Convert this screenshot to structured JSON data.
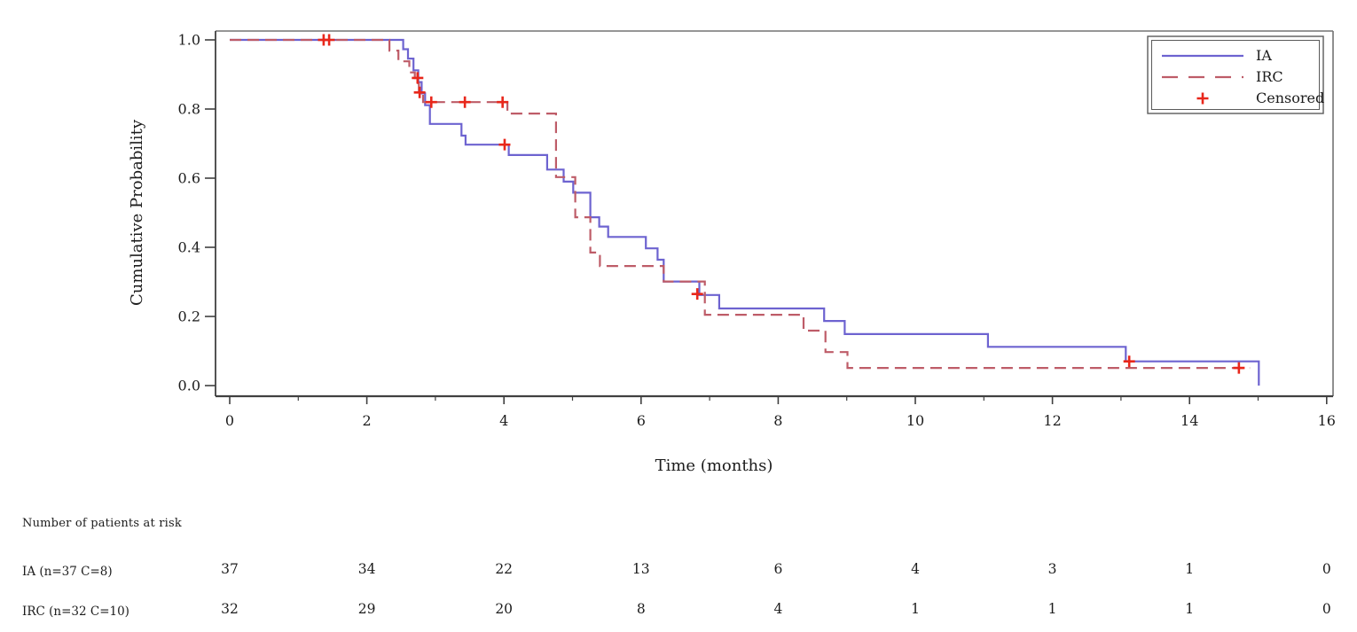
{
  "chart_data": {
    "type": "line",
    "subtype": "kaplan-meier-step",
    "title": "",
    "xlabel": "Time (months)",
    "ylabel": "Cumulative Probability",
    "xlim": [
      0,
      16
    ],
    "ylim": [
      0.0,
      1.0
    ],
    "x_ticks": [
      0,
      2,
      4,
      6,
      8,
      10,
      12,
      14,
      16
    ],
    "x_minor_ticks": [
      1,
      3,
      5,
      7,
      9,
      11,
      13,
      15
    ],
    "y_ticks": [
      0.0,
      0.2,
      0.4,
      0.6,
      0.8,
      1.0
    ],
    "grid": "off",
    "frame": "box",
    "colors": {
      "ia_line": "#6D63D0",
      "irc_line": "#BE5C68",
      "censor_mark": "#E8271B",
      "axis_dark": "#404040",
      "frame_gray": "#737373"
    },
    "series": [
      {
        "name": "IA",
        "style": "solid",
        "color": "#6D63D0",
        "points": [
          [
            0,
            1.0
          ],
          [
            2.53,
            0.973
          ],
          [
            2.6,
            0.946
          ],
          [
            2.68,
            0.912
          ],
          [
            2.75,
            0.878
          ],
          [
            2.8,
            0.845
          ],
          [
            2.85,
            0.811
          ],
          [
            2.92,
            0.757
          ],
          [
            3.38,
            0.723
          ],
          [
            3.44,
            0.697
          ],
          [
            4.07,
            0.667
          ],
          [
            4.63,
            0.625
          ],
          [
            4.87,
            0.59
          ],
          [
            5.01,
            0.558
          ],
          [
            5.26,
            0.487
          ],
          [
            5.39,
            0.46
          ],
          [
            5.52,
            0.43
          ],
          [
            6.07,
            0.397
          ],
          [
            6.24,
            0.364
          ],
          [
            6.33,
            0.301
          ],
          [
            6.85,
            0.262
          ],
          [
            7.14,
            0.223
          ],
          [
            8.67,
            0.187
          ],
          [
            8.97,
            0.149
          ],
          [
            11.06,
            0.112
          ],
          [
            13.07,
            0.07
          ],
          [
            15.01,
            0.0
          ]
        ]
      },
      {
        "name": "IRC",
        "style": "dashed",
        "color": "#BE5C68",
        "points": [
          [
            0,
            1.0
          ],
          [
            2.33,
            0.969
          ],
          [
            2.46,
            0.938
          ],
          [
            2.62,
            0.906
          ],
          [
            2.7,
            0.875
          ],
          [
            2.76,
            0.846
          ],
          [
            2.82,
            0.82
          ],
          [
            4.05,
            0.787
          ],
          [
            4.76,
            0.603
          ],
          [
            5.04,
            0.487
          ],
          [
            5.26,
            0.385
          ],
          [
            5.4,
            0.346
          ],
          [
            6.33,
            0.301
          ],
          [
            6.93,
            0.205
          ],
          [
            8.37,
            0.159
          ],
          [
            8.69,
            0.097
          ],
          [
            9.01,
            0.051
          ],
          [
            14.88,
            0.051
          ]
        ]
      }
    ],
    "censored": {
      "name": "Censored",
      "marker": "plus",
      "color": "#E8271B",
      "points": [
        [
          1.37,
          1.0
        ],
        [
          1.45,
          1.0
        ],
        [
          2.74,
          0.89
        ],
        [
          2.77,
          0.848
        ],
        [
          2.94,
          0.82
        ],
        [
          3.43,
          0.82
        ],
        [
          3.98,
          0.82
        ],
        [
          4.01,
          0.697
        ],
        [
          6.82,
          0.265
        ],
        [
          13.12,
          0.07
        ],
        [
          14.72,
          0.051
        ]
      ]
    },
    "legend": {
      "position": "top-right",
      "entries": [
        "IA",
        "IRC",
        "Censored"
      ]
    },
    "at_risk": {
      "title": "Number of patients at risk",
      "times": [
        0,
        2,
        4,
        6,
        8,
        10,
        12,
        14,
        16
      ],
      "rows": [
        {
          "label": "IA (n=37 C=8)",
          "counts": [
            "37",
            "34",
            "22",
            "13",
            "6",
            "4",
            "3",
            "1",
            "0"
          ]
        },
        {
          "label": "IRC (n=32 C=10)",
          "counts": [
            "32",
            "29",
            "20",
            "8",
            "4",
            "1",
            "1",
            "1",
            "0"
          ]
        }
      ]
    }
  }
}
